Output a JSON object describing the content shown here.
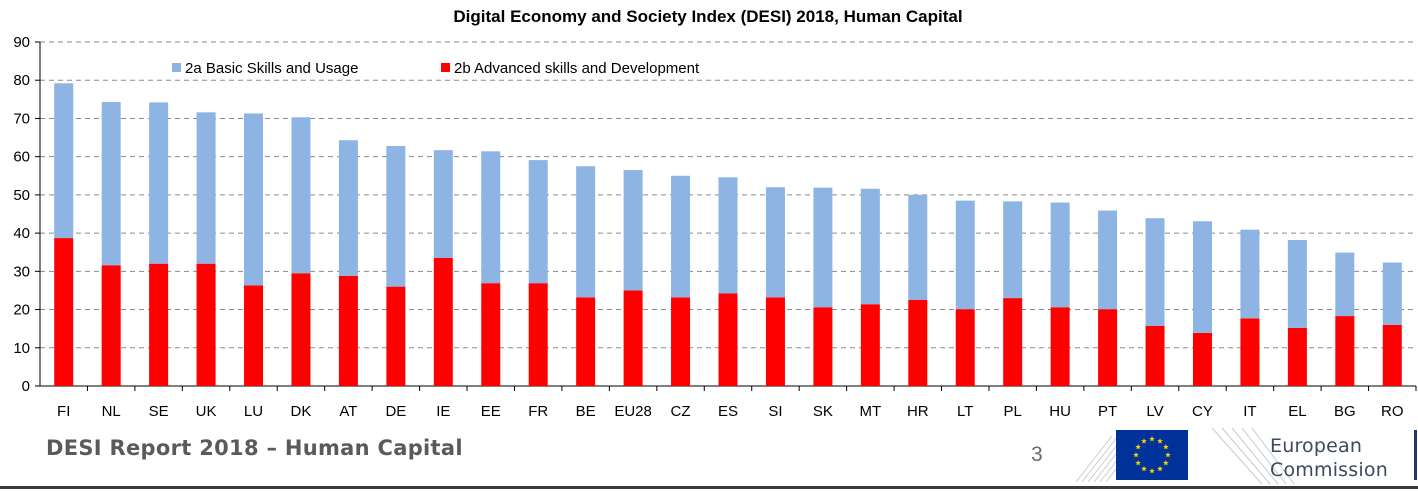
{
  "chart_data": {
    "type": "bar",
    "stacked": true,
    "title": "Digital Economy and Society Index (DESI) 2018, Human Capital",
    "categories": [
      "FI",
      "NL",
      "SE",
      "UK",
      "LU",
      "DK",
      "AT",
      "DE",
      "IE",
      "EE",
      "FR",
      "BE",
      "EU28",
      "CZ",
      "ES",
      "SI",
      "SK",
      "MT",
      "HR",
      "LT",
      "PL",
      "HU",
      "PT",
      "LV",
      "CY",
      "IT",
      "EL",
      "BG",
      "RO"
    ],
    "series": [
      {
        "name": "2b Advanced skills and Development",
        "color": "#ff0000",
        "values": [
          38.7,
          31.6,
          32.0,
          32.0,
          26.3,
          29.5,
          28.8,
          26.0,
          33.5,
          26.9,
          26.9,
          23.2,
          25.0,
          23.2,
          24.2,
          23.2,
          20.6,
          21.4,
          22.5,
          20.1,
          23.0,
          20.6,
          20.1,
          15.7,
          13.9,
          17.7,
          15.2,
          18.3,
          16.0
        ]
      },
      {
        "name": "2a Basic Skills and Usage",
        "color": "#8db4e2",
        "values": [
          40.5,
          42.7,
          42.2,
          39.6,
          45.0,
          40.8,
          35.5,
          36.8,
          28.2,
          34.5,
          32.2,
          34.3,
          31.5,
          31.8,
          30.4,
          28.8,
          31.3,
          30.2,
          27.5,
          28.4,
          25.3,
          27.4,
          25.8,
          28.2,
          29.2,
          23.2,
          23.0,
          16.6,
          16.3
        ]
      }
    ],
    "ylim": [
      0,
      90
    ],
    "yticks": [
      0,
      10,
      20,
      30,
      40,
      50,
      60,
      70,
      80,
      90
    ],
    "grid": true,
    "legend_position": "top-left"
  },
  "footer": {
    "title": "DESI Report 2018 – Human Capital",
    "page_number": "3"
  },
  "logo": {
    "label_line1": "European",
    "label_line2": "Commission",
    "flag_color": "#003399",
    "star_color": "#ffcc00"
  }
}
